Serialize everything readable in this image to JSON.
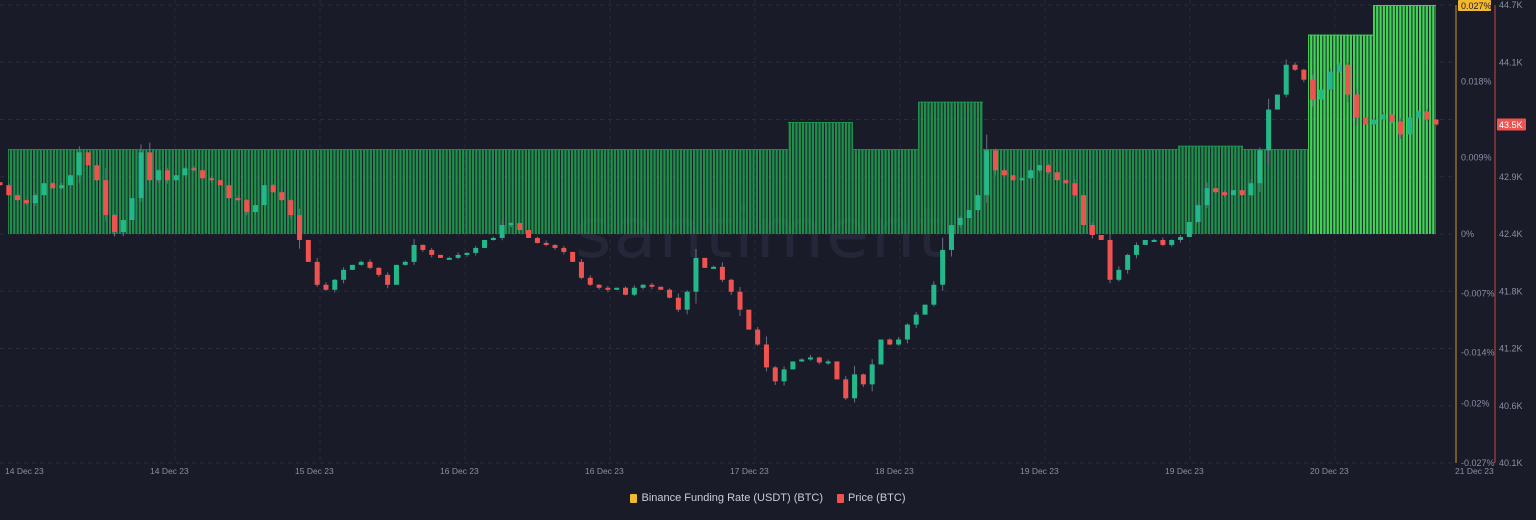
{
  "watermark": "santiment",
  "legend": [
    {
      "label": "Binance Funding Rate (USDT) (BTC)",
      "color": "#f2b92f"
    },
    {
      "label": "Price (BTC)",
      "color": "#ef5350"
    }
  ],
  "colors": {
    "background": "#1a1b29",
    "funding_bar": "#1f8f4c",
    "funding_bar_high": "#3fd455",
    "candle_up": "#22b88a",
    "candle_down": "#ef5350",
    "funding_axis": "#8c6f2c",
    "price_axis": "#8c3a3e"
  },
  "chart_data": [
    {
      "type": "bar",
      "series_name": "Binance Funding Rate (USDT) (BTC)",
      "unit": "%",
      "axis": "right-inner",
      "ylim": [
        -0.027,
        0.027
      ],
      "yticks": [
        "0.027%",
        "0.018%",
        "0.009%",
        "0%",
        "-0.007%",
        "-0.014%",
        "-0.02%",
        "-0.027%"
      ],
      "current_label": "0.027%",
      "values": [
        0.01,
        0.01,
        0.01,
        0.01,
        0.01,
        0.01,
        0.01,
        0.01,
        0.01,
        0.01,
        0.01,
        0.01,
        0.0132,
        0.01,
        0.0156,
        0.01,
        0.01,
        0.01,
        0.0104,
        0.01,
        0.0235,
        0.027
      ]
    },
    {
      "type": "candlestick",
      "series_name": "Price (BTC)",
      "axis": "right-outer",
      "ylim": [
        40100,
        44700
      ],
      "yticks": [
        "44.7K",
        "44.1K",
        "43.5K",
        "42.9K",
        "42.4K",
        "41.8K",
        "41.2K",
        "40.6K",
        "40.1K"
      ],
      "current_label": "43.5K",
      "closes": [
        42890,
        42790,
        42740,
        42710,
        42790,
        42910,
        42860,
        42890,
        42990,
        43220,
        43090,
        42940,
        42590,
        42420,
        42540,
        42760,
        43220,
        42940,
        43040,
        42940,
        42990,
        43060,
        43040,
        42960,
        42940,
        42890,
        42760,
        42740,
        42620,
        42690,
        42890,
        42820,
        42740,
        42590,
        42340,
        42120,
        41890,
        41840,
        41940,
        42040,
        42090,
        42120,
        42060,
        41990,
        41890,
        42090,
        42120,
        42290,
        42240,
        42190,
        42160,
        42160,
        42190,
        42210,
        42260,
        42340,
        42360,
        42490,
        42510,
        42440,
        42360,
        42310,
        42290,
        42260,
        42220,
        42120,
        41960,
        41890,
        41860,
        41840,
        41860,
        41790,
        41860,
        41890,
        41870,
        41840,
        41760,
        41640,
        41820,
        42160,
        42060,
        42070,
        41940,
        41820,
        41640,
        41440,
        41290,
        41060,
        40920,
        41040,
        41120,
        41140,
        41160,
        41110,
        41120,
        40940,
        40750,
        40990,
        40890,
        41090,
        41340,
        41290,
        41340,
        41490,
        41590,
        41690,
        41890,
        42240,
        42490,
        42560,
        42640,
        42790,
        43240,
        43040,
        42990,
        42940,
        42960,
        43040,
        43090,
        43020,
        42940,
        42910,
        42790,
        42490,
        42390,
        42340,
        41940,
        42040,
        42190,
        42290,
        42340,
        42340,
        42290,
        42340,
        42370,
        42520,
        42690,
        42860,
        42820,
        42790,
        42840,
        42790,
        42910,
        43240,
        43650,
        43800,
        44100,
        44050,
        43950,
        43750,
        43850,
        44030,
        44100,
        43800,
        43570,
        43500,
        43550,
        43600,
        43530,
        43400,
        43570,
        43630,
        43550,
        43500
      ]
    }
  ],
  "x_axis": {
    "ticks": [
      "14 Dec 23",
      "14 Dec 23",
      "15 Dec 23",
      "16 Dec 23",
      "16 Dec 23",
      "17 Dec 23",
      "18 Dec 23",
      "19 Dec 23",
      "19 Dec 23",
      "20 Dec 23",
      "21 Dec 23"
    ]
  }
}
